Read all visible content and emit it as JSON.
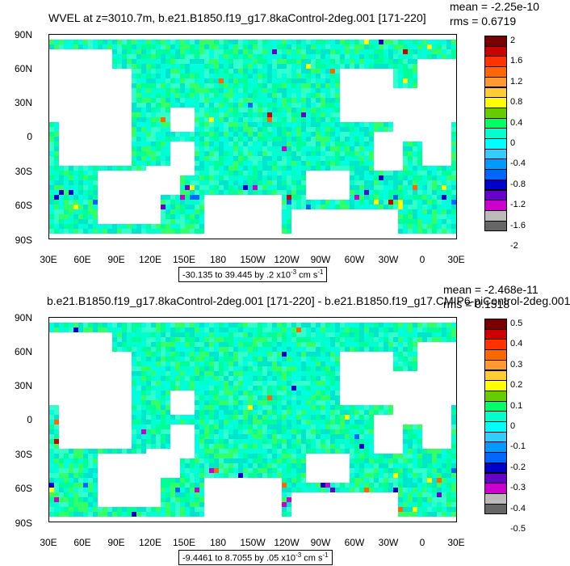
{
  "panels": [
    {
      "title": "WVEL at z=3010.7m, b.e21.B1850.f19_g17.8kaControl-2deg.001 [171-220]",
      "mean_label": "mean = -2.25e-10",
      "rms_label": "rms = 0.6719",
      "range_text": "-30.135 to 39.445 by .2 x10",
      "range_exp": "-3",
      "range_units": " cm s",
      "range_units_exp": "-1",
      "colorbar_labels": [
        "2",
        "1.6",
        "1.2",
        "0.8",
        "0.4",
        "0",
        "-0.4",
        "-0.8",
        "-1.2",
        "-1.6",
        "-2"
      ]
    },
    {
      "title": "b.e21.B1850.f19_g17.8kaControl-2deg.001 [171-220] - b.e21.B1850.f19_g17.CMIP6-piControl-2deg.001",
      "mean_label": "mean = -2.468e-11",
      "rms_label": "rms = 0.1518",
      "range_text": "-9.4461 to 8.7055 by .05 x10",
      "range_exp": "-3",
      "range_units": " cm s",
      "range_units_exp": "-1",
      "colorbar_labels": [
        "0.5",
        "0.4",
        "0.3",
        "0.2",
        "0.1",
        "0",
        "-0.1",
        "-0.2",
        "-0.3",
        "-0.4",
        "-0.5"
      ]
    }
  ],
  "lat_labels": [
    "90N",
    "60N",
    "30N",
    "0",
    "30S",
    "60S",
    "90S"
  ],
  "lon_labels": [
    "30E",
    "60E",
    "90E",
    "120E",
    "150E",
    "180",
    "150W",
    "120W",
    "90W",
    "60W",
    "30W",
    "0",
    "30E"
  ],
  "colors": [
    "#7a0000",
    "#cc0000",
    "#ff3300",
    "#ff6600",
    "#ff9933",
    "#ffcc33",
    "#ffff00",
    "#66cc00",
    "#00ff66",
    "#00ffcc",
    "#00ffff",
    "#33ccff",
    "#0099ff",
    "#0066ff",
    "#0000cc",
    "#6600cc",
    "#cc00cc",
    "#bbbbbb",
    "#666666"
  ]
}
